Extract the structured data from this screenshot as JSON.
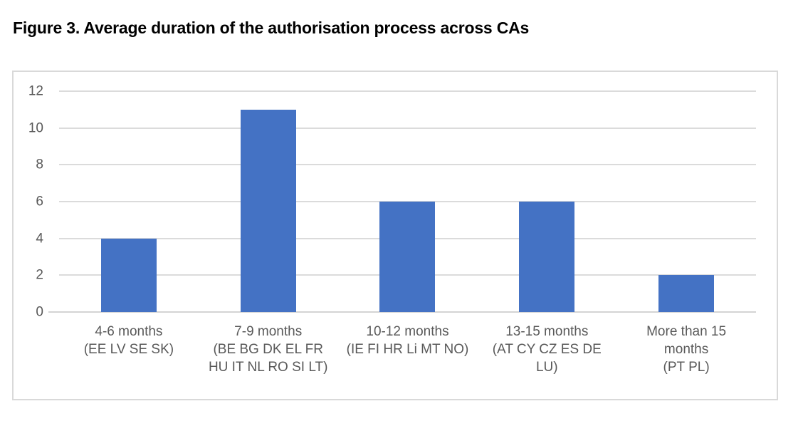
{
  "figure": {
    "title": "Figure 3. Average duration of the authorisation process across CAs"
  },
  "chart_data": {
    "type": "bar",
    "title": "Figure 3. Average duration of the authorisation process across CAs",
    "categories": [
      "4-6 months (EE LV SE SK)",
      "7-9 months (BE BG DK EL FR HU IT NL RO SI LT)",
      "10-12 months (IE FI HR Li MT NO)",
      "13-15 months (AT CY CZ ES DE LU)",
      "More than 15 months (PT PL)"
    ],
    "categories_wrapped": [
      "4-6 months\n(EE LV SE SK)",
      "7-9 months\n(BE BG DK EL FR\nHU IT NL RO SI LT)",
      "10-12 months\n(IE FI HR Li MT NO)",
      "13-15 months\n(AT CY CZ ES DE\nLU)",
      "More than 15\nmonths\n(PT PL)"
    ],
    "values": [
      4,
      11,
      6,
      6,
      2
    ],
    "xlabel": "",
    "ylabel": "",
    "ylim": [
      0,
      12
    ],
    "ytick_step": 2,
    "yticks": [
      0,
      2,
      4,
      6,
      8,
      10,
      12
    ],
    "ytick_labels_top_to_bottom": [
      "12",
      "10",
      "8",
      "6",
      "4",
      "2",
      "0"
    ],
    "grid": true,
    "legend": "none",
    "colors": {
      "bar": "#4472C4",
      "gridline": "#DBDBDB",
      "axis_line": "#D4D4D4",
      "tick_text": "#595959",
      "title_text": "#000000",
      "chart_border": "#D9D9D9",
      "background": "#FFFFFF"
    }
  }
}
